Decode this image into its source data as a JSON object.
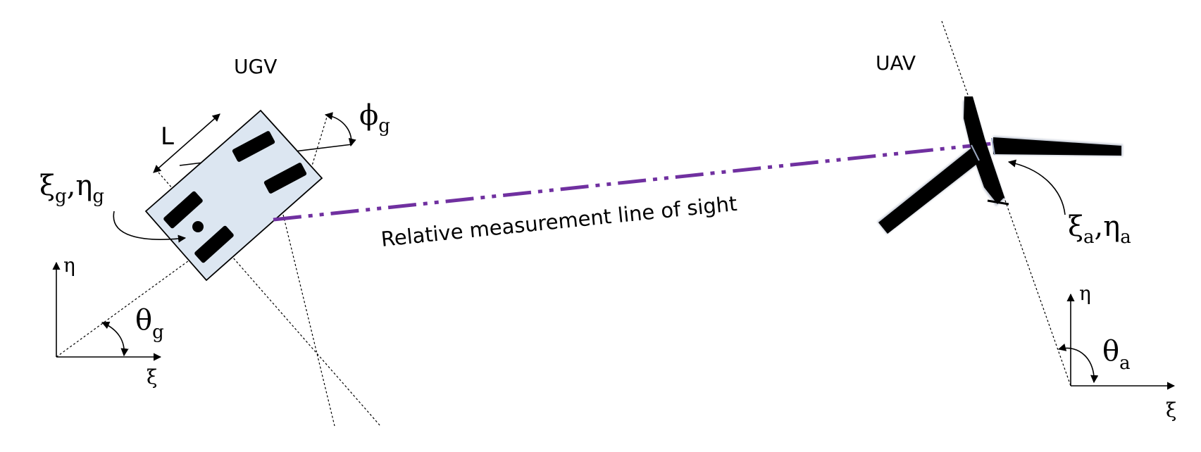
{
  "labels": {
    "ugv": "UGV",
    "uav": "UAV",
    "length": "L",
    "los": "Relative measurement line of sight"
  },
  "symbols": {
    "xi": "ξ",
    "eta": "η",
    "theta": "θ",
    "phi": "ϕ",
    "g": "g",
    "a": "a",
    "comma": ","
  },
  "colors": {
    "ugv_body_fill": "#dce6f1",
    "los_line": "#7030a0",
    "uav_fill": "#000000"
  }
}
